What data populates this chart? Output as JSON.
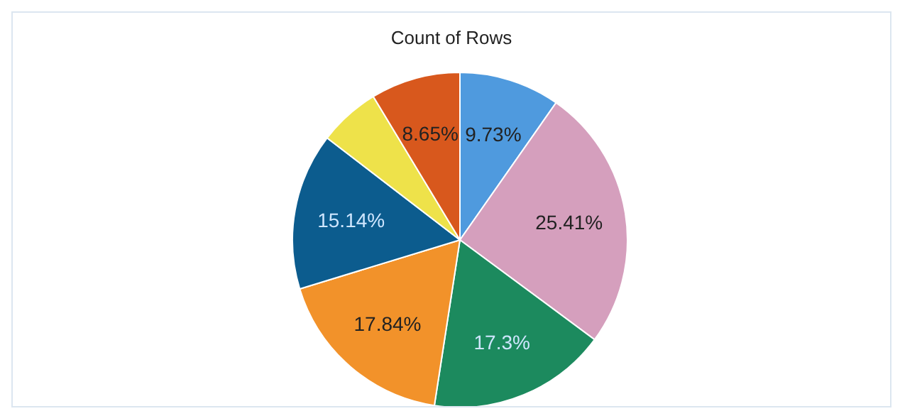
{
  "chart_data": {
    "type": "pie",
    "title": "Count of Rows",
    "categories": [
      null,
      null,
      null,
      null,
      null,
      null,
      null
    ],
    "values": [
      9.73,
      25.41,
      17.3,
      17.84,
      15.14,
      5.93,
      8.65
    ],
    "colors": [
      "#4f9ade",
      "#d59fbd",
      "#1c8a5e",
      "#f2922a",
      "#0c5c8e",
      "#eee24a",
      "#d8581d"
    ],
    "value_labels": [
      "9.73%",
      "25.41%",
      "17.3%",
      "17.84%",
      "15.14%",
      null,
      "8.65%"
    ]
  }
}
